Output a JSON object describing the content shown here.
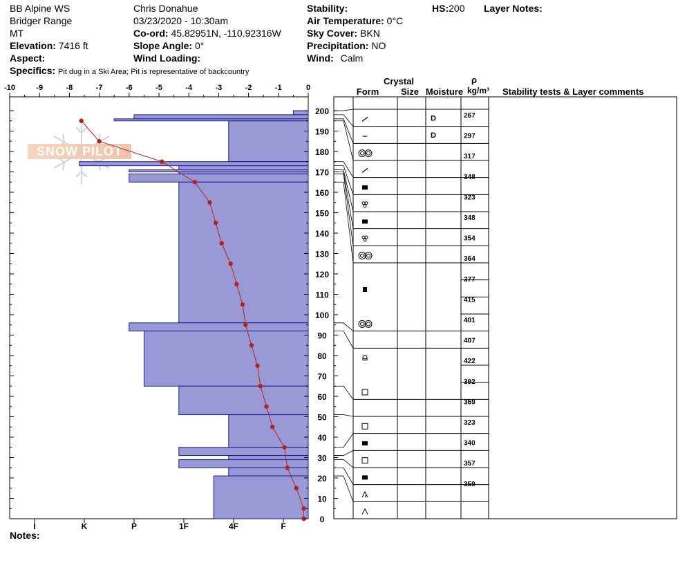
{
  "header": {
    "station": "BB Alpine WS",
    "range": "Bridger Range",
    "state": "MT",
    "elevation_label": "Elevation:",
    "elevation_value": "7416 ft",
    "aspect_label": "Aspect:",
    "aspect_value": "",
    "observer": "Chris Donahue",
    "datetime": "03/23/2020 - 10:30am",
    "coord_label": "Co-ord:",
    "coord_value": "45.82951N, -110.92316W",
    "slope_label": "Slope Angle:",
    "slope_value": "0°",
    "wind_loading_label": "Wind Loading:",
    "wind_loading_value": "",
    "stability_label": "Stability:",
    "stability_value": "",
    "air_temp_label": "Air Temperature:",
    "air_temp_value": "0°C",
    "sky_label": "Sky Cover:",
    "sky_value": "BKN",
    "precip_label": "Precipitation:",
    "precip_value": "NO",
    "wind_label": "Wind:",
    "wind_value": "Calm",
    "hs_label": "HS:",
    "hs_value": "200",
    "layer_notes_label": "Layer Notes:",
    "specifics_label": "Specifics:",
    "specifics_value": "Pit dug in a Ski Area; Pit is representative of backcountry",
    "notes_label": "Notes:",
    "watermark": "SNOW PILOT"
  },
  "table_headers": {
    "crystal": "Crystal",
    "form": "Form",
    "size": "Size",
    "moisture": "Moisture",
    "rho": "ρ",
    "density_unit": "kg/m³",
    "stability": "Stability tests & Layer comments"
  },
  "colors": {
    "hardness_fill": "#9999d6",
    "hardness_stroke": "#1a1a99",
    "temperature": "#b22222"
  },
  "chart_data": {
    "type": "area",
    "temp_axis": {
      "ticks": [
        -10,
        -9,
        -8,
        -7,
        -6,
        -5,
        -4,
        -3,
        -2,
        -1,
        0
      ],
      "range": [
        -10,
        0
      ]
    },
    "height_axis": {
      "ticks": [
        0,
        10,
        20,
        30,
        40,
        50,
        60,
        70,
        80,
        90,
        100,
        110,
        120,
        130,
        140,
        150,
        160,
        170,
        180,
        190,
        200
      ],
      "range": [
        0,
        200
      ]
    },
    "hardness_axis": {
      "labels": [
        "I",
        "K",
        "P",
        "1F",
        "4F",
        "F"
      ],
      "values": [
        5.5,
        4.5,
        3.5,
        2.5,
        1.5,
        0.5
      ]
    },
    "hardness_profile": [
      {
        "bottom": 198,
        "top": 200,
        "hardness": 0.3
      },
      {
        "bottom": 196,
        "top": 198,
        "hardness": 3.5
      },
      {
        "bottom": 195,
        "top": 196,
        "hardness": 3.9
      },
      {
        "bottom": 175,
        "top": 195,
        "hardness": 1.6
      },
      {
        "bottom": 173,
        "top": 175,
        "hardness": 4.6
      },
      {
        "bottom": 171,
        "top": 173,
        "hardness": 2.6
      },
      {
        "bottom": 170,
        "top": 171,
        "hardness": 3.6
      },
      {
        "bottom": 169,
        "top": 170,
        "hardness": 2.6
      },
      {
        "bottom": 165,
        "top": 169,
        "hardness": 3.6
      },
      {
        "bottom": 96,
        "top": 165,
        "hardness": 2.6
      },
      {
        "bottom": 92,
        "top": 96,
        "hardness": 3.6
      },
      {
        "bottom": 65,
        "top": 92,
        "hardness": 3.3
      },
      {
        "bottom": 51,
        "top": 65,
        "hardness": 2.6
      },
      {
        "bottom": 35,
        "top": 51,
        "hardness": 1.6
      },
      {
        "bottom": 31,
        "top": 35,
        "hardness": 2.6
      },
      {
        "bottom": 29,
        "top": 31,
        "hardness": 1.6
      },
      {
        "bottom": 25,
        "top": 29,
        "hardness": 2.6
      },
      {
        "bottom": 21,
        "top": 25,
        "hardness": 1.6
      },
      {
        "bottom": 0,
        "top": 21,
        "hardness": 1.9
      }
    ],
    "temperature_profile": [
      {
        "height": 195,
        "temp": -7.6
      },
      {
        "height": 185,
        "temp": -7.0
      },
      {
        "height": 175,
        "temp": -4.9
      },
      {
        "height": 165,
        "temp": -3.8
      },
      {
        "height": 155,
        "temp": -3.3
      },
      {
        "height": 145,
        "temp": -3.1
      },
      {
        "height": 135,
        "temp": -2.9
      },
      {
        "height": 125,
        "temp": -2.6
      },
      {
        "height": 115,
        "temp": -2.4
      },
      {
        "height": 105,
        "temp": -2.2
      },
      {
        "height": 95,
        "temp": -2.1
      },
      {
        "height": 85,
        "temp": -1.9
      },
      {
        "height": 75,
        "temp": -1.7
      },
      {
        "height": 65,
        "temp": -1.6
      },
      {
        "height": 55,
        "temp": -1.4
      },
      {
        "height": 45,
        "temp": -1.2
      },
      {
        "height": 35,
        "temp": -0.8
      },
      {
        "height": 25,
        "temp": -0.7
      },
      {
        "height": 15,
        "temp": -0.4
      },
      {
        "height": 5,
        "temp": -0.15
      },
      {
        "height": 0,
        "temp": -0.15
      }
    ],
    "layers": [
      {
        "bottom": 198,
        "top": 200,
        "form": "",
        "moisture": ""
      },
      {
        "bottom": 196,
        "top": 198,
        "form": "decomposing",
        "moisture": "D"
      },
      {
        "bottom": 195,
        "top": 196,
        "form": "decomposing",
        "moisture": "D"
      },
      {
        "bottom": 175,
        "top": 195,
        "form": "melt-freeze",
        "moisture": ""
      },
      {
        "bottom": 173,
        "top": 175,
        "form": "decomposing",
        "moisture": ""
      },
      {
        "bottom": 171,
        "top": 173,
        "form": "ice",
        "moisture": ""
      },
      {
        "bottom": 170,
        "top": 171,
        "form": "rounded-faceted",
        "moisture": ""
      },
      {
        "bottom": 169,
        "top": 170,
        "form": "ice",
        "moisture": ""
      },
      {
        "bottom": 165,
        "top": 169,
        "form": "rounded-faceted",
        "moisture": ""
      },
      {
        "bottom": 96,
        "top": 165,
        "form": "melt-freeze",
        "moisture": ""
      },
      {
        "bottom": 92,
        "top": 96,
        "form": "melt-freeze",
        "moisture": ""
      },
      {
        "bottom": 65,
        "top": 92,
        "form": "faceted-rounding",
        "moisture": ""
      },
      {
        "bottom": 51,
        "top": 65,
        "form": "faceted",
        "moisture": ""
      },
      {
        "bottom": 35,
        "top": 51,
        "form": "faceted",
        "moisture": ""
      },
      {
        "bottom": 31,
        "top": 35,
        "form": "ice",
        "moisture": ""
      },
      {
        "bottom": 29,
        "top": 31,
        "form": "faceted",
        "moisture": ""
      },
      {
        "bottom": 25,
        "top": 29,
        "form": "ice",
        "moisture": ""
      },
      {
        "bottom": 21,
        "top": 25,
        "form": "depth-hoar",
        "moisture": ""
      },
      {
        "bottom": 0,
        "top": 21,
        "form": "depth-hoar",
        "moisture": ""
      }
    ],
    "form_symbols": [
      {
        "row": 0,
        "symbol": "decomposing"
      },
      {
        "row": 1,
        "symbol": "decomposing-dash"
      },
      {
        "row": 2,
        "symbol": "melt-freeze"
      },
      {
        "row": 3,
        "symbol": "decomposing"
      },
      {
        "row": 4,
        "symbol": "ice"
      },
      {
        "row": 5,
        "symbol": "rounded-faceted"
      },
      {
        "row": 6,
        "symbol": "ice"
      },
      {
        "row": 7,
        "symbol": "rounded-faceted"
      },
      {
        "row": 8,
        "symbol": "melt-freeze"
      },
      {
        "row": 10,
        "symbol": "rounded"
      },
      {
        "row": 12,
        "symbol": "melt-freeze"
      },
      {
        "row": 14,
        "symbol": "faceted-rounding"
      },
      {
        "row": 16,
        "symbol": "faceted"
      },
      {
        "row": 18,
        "symbol": "faceted"
      },
      {
        "row": 19,
        "symbol": "ice"
      },
      {
        "row": 20,
        "symbol": "faceted"
      },
      {
        "row": 21,
        "symbol": "ice"
      },
      {
        "row": 22,
        "symbol": "depth-hoar-partial"
      },
      {
        "row": 23,
        "symbol": "depth-hoar"
      }
    ],
    "moisture_symbols": [
      {
        "row": 0,
        "text": "D"
      },
      {
        "row": 1,
        "text": "D"
      }
    ],
    "densities": [
      "267",
      "297",
      "317",
      "348",
      "323",
      "348",
      "354",
      "364",
      "377",
      "415",
      "401",
      "407",
      "422",
      "392",
      "369",
      "323",
      "340",
      "357",
      "359"
    ]
  }
}
